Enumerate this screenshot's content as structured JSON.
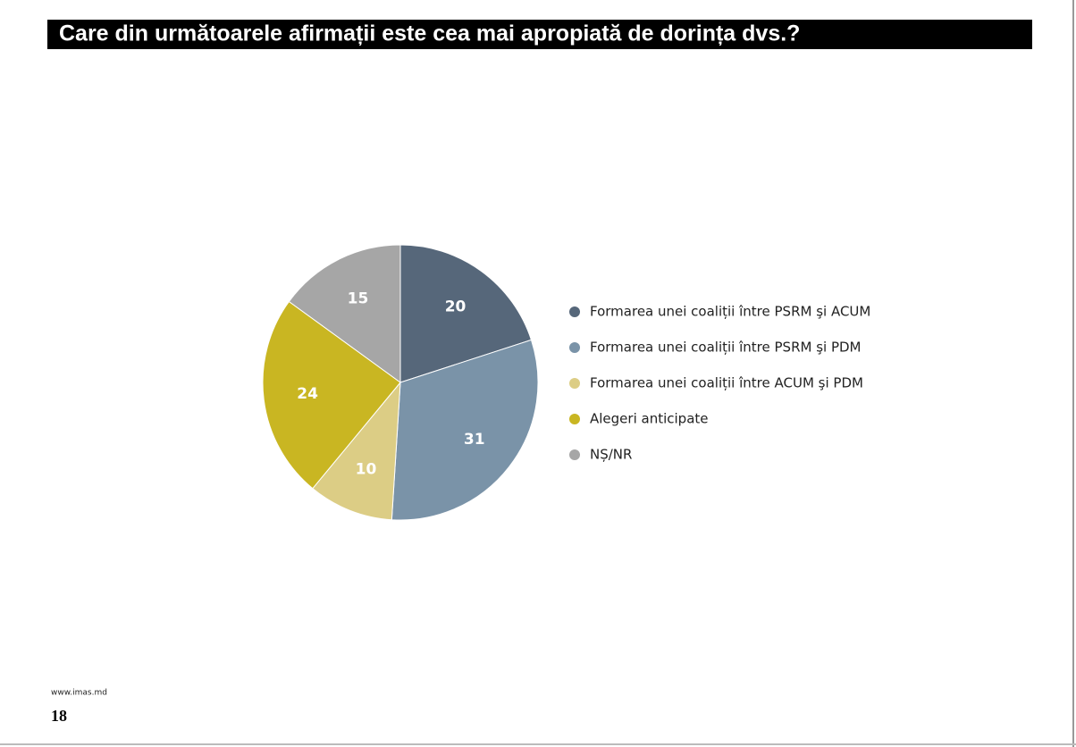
{
  "chart_data": {
    "type": "pie",
    "title": "Care din următoarele afirmații este cea mai apropiată de dorința dvs.?",
    "categories": [
      "Formarea unei coaliții între PSRM şi  ACUM",
      "Formarea unei coaliții între PSRM şi PDM",
      "Formarea unei coaliții între ACUM şi PDM",
      "Alegeri anticipate",
      "NȘ/NR"
    ],
    "values": [
      20,
      31,
      10,
      24,
      15
    ],
    "colors": [
      "#56677a",
      "#7a93a8",
      "#dccd85",
      "#c9b622",
      "#a6a6a6"
    ],
    "legend": "right"
  },
  "footer": {
    "source": "www.imas.md",
    "page_number": "18"
  }
}
